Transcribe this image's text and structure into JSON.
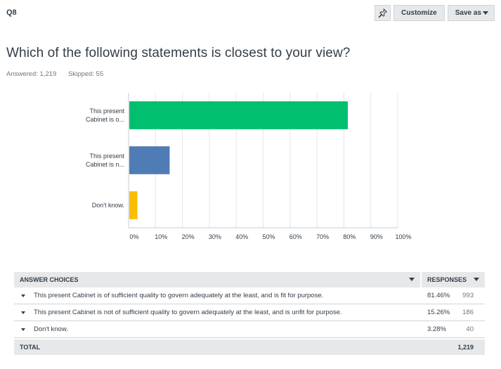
{
  "question_number": "Q8",
  "toolbar": {
    "customize_label": "Customize",
    "save_as_label": "Save as"
  },
  "question_text": "Which of the following statements is closest to your view?",
  "meta": {
    "answered": "Answered: 1,219",
    "skipped": "Skipped: 55"
  },
  "chart_data": {
    "type": "bar",
    "orientation": "horizontal",
    "categories": [
      [
        "This present",
        "Cabinet is o..."
      ],
      [
        "This present",
        "Cabinet is n..."
      ],
      [
        "Don't know."
      ]
    ],
    "values": [
      81.46,
      15.26,
      3.28
    ],
    "colors": [
      "#00bf6f",
      "#507cb6",
      "#f9be00"
    ],
    "xlim": [
      0,
      100
    ],
    "xticks": [
      "0%",
      "10%",
      "20%",
      "30%",
      "40%",
      "50%",
      "60%",
      "70%",
      "80%",
      "90%",
      "100%"
    ],
    "grid": true
  },
  "table": {
    "header_choices": "ANSWER CHOICES",
    "header_responses": "RESPONSES",
    "rows": [
      {
        "choice": "This present Cabinet is of sufficient quality to govern adequately at the least, and is fit for purpose.",
        "percent": "81.46%",
        "count": "993"
      },
      {
        "choice": "This present Cabinet is not of sufficient quality to govern adequately at the least, and is unfit for purpose.",
        "percent": "15.26%",
        "count": "186"
      },
      {
        "choice": "Don't know.",
        "percent": "3.28%",
        "count": "40"
      }
    ],
    "total_label": "TOTAL",
    "total_value": "1,219"
  },
  "icons": {
    "pin": "pin-icon"
  }
}
